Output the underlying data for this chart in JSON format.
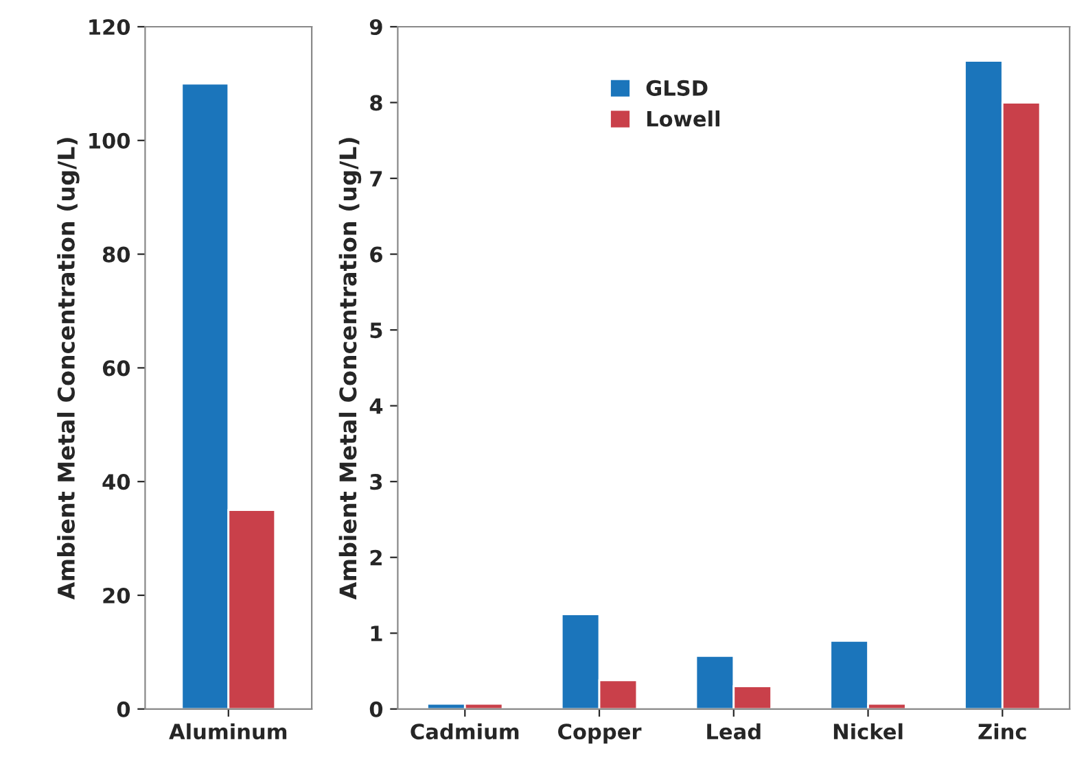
{
  "chart_data": [
    {
      "type": "bar",
      "ylabel": "Ambient Metal Concentration (ug/L)",
      "categories": [
        "Aluminum"
      ],
      "ylim": [
        0,
        120
      ],
      "yticks": [
        0,
        20,
        40,
        60,
        80,
        100,
        120
      ],
      "legend": false,
      "series": [
        {
          "color": "#1b75bb",
          "values": [
            110
          ]
        },
        {
          "color": "#c9404a",
          "values": [
            35
          ]
        }
      ]
    },
    {
      "type": "bar",
      "ylabel": "Ambient Metal Concentration (ug/L)",
      "categories": [
        "Cadmium",
        "Copper",
        "Lead",
        "Nickel",
        "Zinc"
      ],
      "ylim": [
        0,
        9
      ],
      "yticks": [
        0,
        1,
        2,
        3,
        4,
        5,
        6,
        7,
        8,
        9
      ],
      "legend": "top",
      "series": [
        {
          "name": "GLSD",
          "color": "#1b75bb",
          "values": [
            0.07,
            1.25,
            0.7,
            0.9,
            8.55
          ]
        },
        {
          "name": "Lowell",
          "color": "#c9404a",
          "values": [
            0.07,
            0.38,
            0.3,
            0.07,
            8.0
          ]
        }
      ]
    }
  ]
}
